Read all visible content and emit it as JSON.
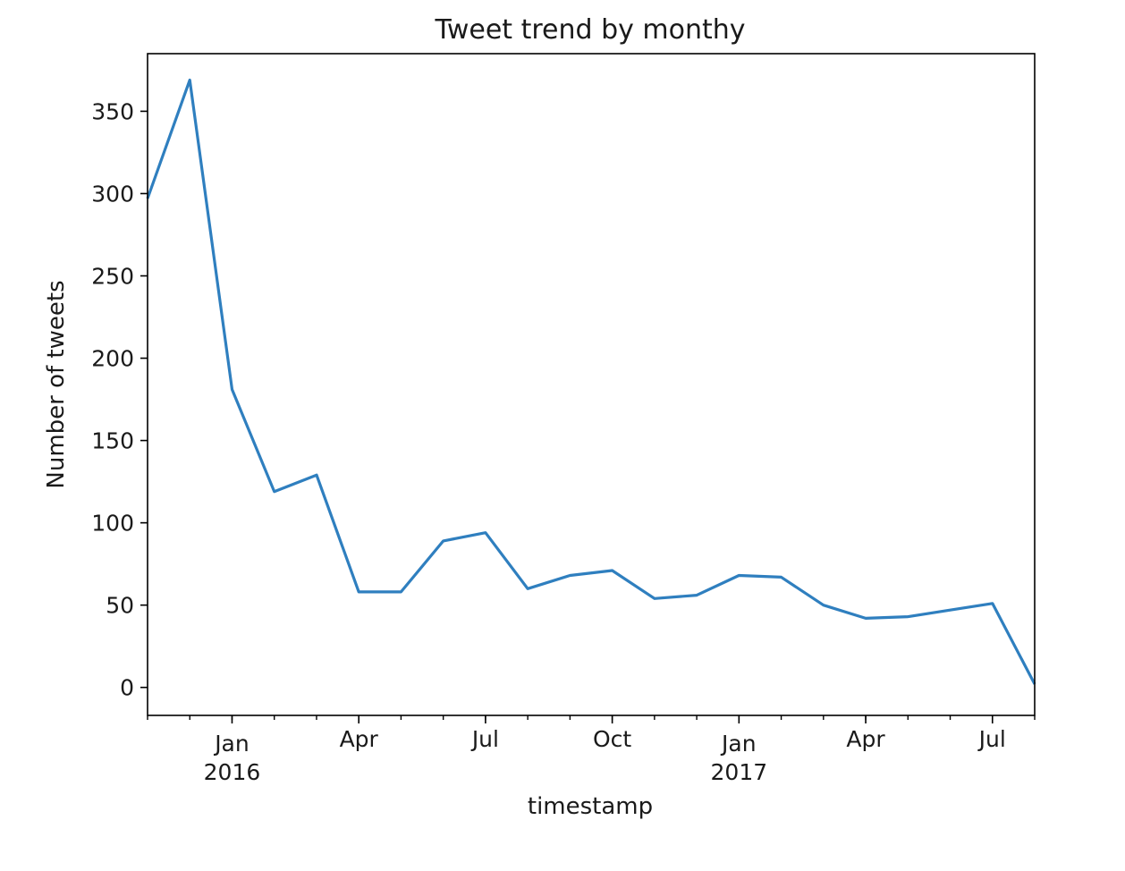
{
  "chart_data": {
    "type": "line",
    "title": "Tweet trend by monthy",
    "xlabel": "timestamp",
    "ylabel": "Number of tweets",
    "x": [
      "2015-11",
      "2015-12",
      "2016-01",
      "2016-02",
      "2016-03",
      "2016-04",
      "2016-05",
      "2016-06",
      "2016-07",
      "2016-08",
      "2016-09",
      "2016-10",
      "2016-11",
      "2016-12",
      "2017-01",
      "2017-02",
      "2017-03",
      "2017-04",
      "2017-05",
      "2017-06",
      "2017-07",
      "2017-08"
    ],
    "series": [
      {
        "values": [
          297,
          369,
          181,
          119,
          129,
          58,
          58,
          89,
          94,
          60,
          68,
          71,
          54,
          56,
          68,
          67,
          50,
          42,
          43,
          47,
          51,
          2
        ],
        "color": "#2f7fbf"
      }
    ],
    "x_range": [
      "2015-11",
      "2017-08"
    ],
    "ylim": [
      -17,
      385
    ],
    "yticks": [
      0,
      50,
      100,
      150,
      200,
      250,
      300,
      350
    ],
    "xticks": [
      {
        "x": "2016-01",
        "label": "Jan",
        "sublabel": "2016"
      },
      {
        "x": "2016-04",
        "label": "Apr",
        "sublabel": ""
      },
      {
        "x": "2016-07",
        "label": "Jul",
        "sublabel": ""
      },
      {
        "x": "2016-10",
        "label": "Oct",
        "sublabel": ""
      },
      {
        "x": "2017-01",
        "label": "Jan",
        "sublabel": "2017"
      },
      {
        "x": "2017-04",
        "label": "Apr",
        "sublabel": ""
      },
      {
        "x": "2017-07",
        "label": "Jul",
        "sublabel": ""
      }
    ],
    "grid": false,
    "legend": "none"
  }
}
